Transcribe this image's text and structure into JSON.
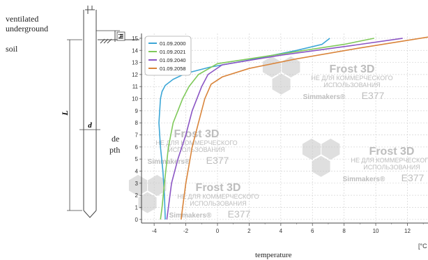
{
  "diagram": {
    "label_top_line1": "ventilated",
    "label_top_line2": "underground",
    "label_soil": "soil",
    "label_depth_line1": "de",
    "label_depth_line2": "pth",
    "label_length": "L",
    "label_diameter": "d",
    "label_height": "hi"
  },
  "watermark": {
    "brand": "Frost 3D",
    "line1": "НЕ ДЛЯ КОММЕРЧЕСКОГО",
    "line2": "ИСПОЛЬЗОВАНИЯ",
    "code": "E377",
    "company": "Simmakers®"
  },
  "colors": {
    "s2000": "#3ba6d6",
    "s2021": "#7fc95a",
    "s2040": "#8b55c4",
    "s2058": "#d9843a"
  },
  "chart_data": {
    "type": "line",
    "xlabel": "temperature",
    "x_unit_label": "[°C",
    "ylabel": "",
    "xlim": [
      -4.8,
      13.3
    ],
    "ylim": [
      -0.3,
      15.4
    ],
    "x_ticks": [
      "-4",
      "-2",
      "0",
      "2",
      "4",
      "6",
      "8",
      "10",
      "12"
    ],
    "y_ticks": [
      "0",
      "1",
      "2",
      "3",
      "4",
      "5",
      "6",
      "7",
      "8",
      "9",
      "10",
      "11",
      "12",
      "13",
      "14",
      "15"
    ],
    "legend_placement": "top-left",
    "series": [
      {
        "name": "01.09.2000",
        "color": "#3ba6d6",
        "points": [
          [
            -3.3,
            0
          ],
          [
            -3.35,
            2
          ],
          [
            -3.45,
            4
          ],
          [
            -3.6,
            6
          ],
          [
            -3.7,
            8
          ],
          [
            -3.65,
            9
          ],
          [
            -3.6,
            10
          ],
          [
            -3.5,
            10.6
          ],
          [
            -3.3,
            11.1
          ],
          [
            -2.8,
            11.6
          ],
          [
            -2,
            12.1
          ],
          [
            -0.5,
            12.6
          ],
          [
            2,
            13.2
          ],
          [
            5,
            14
          ],
          [
            6.6,
            14.5
          ],
          [
            7.1,
            15
          ]
        ]
      },
      {
        "name": "01.09.2021",
        "color": "#7fc95a",
        "points": [
          [
            -3.6,
            0
          ],
          [
            -3.5,
            1
          ],
          [
            -3.35,
            3
          ],
          [
            -3.1,
            6
          ],
          [
            -2.8,
            8
          ],
          [
            -2.5,
            9
          ],
          [
            -2.2,
            10
          ],
          [
            -1.8,
            11
          ],
          [
            -1.2,
            12
          ],
          [
            0,
            12.9
          ],
          [
            4,
            13.7
          ],
          [
            8,
            14.5
          ],
          [
            9.9,
            15
          ]
        ]
      },
      {
        "name": "01.09.2040",
        "color": "#8b55c4",
        "points": [
          [
            -3.2,
            0
          ],
          [
            -3.1,
            1
          ],
          [
            -2.9,
            3
          ],
          [
            -2.5,
            5
          ],
          [
            -2,
            7
          ],
          [
            -1.6,
            9
          ],
          [
            -1.3,
            10
          ],
          [
            -1,
            11
          ],
          [
            -0.6,
            12
          ],
          [
            0.3,
            12.8
          ],
          [
            4,
            13.6
          ],
          [
            8.5,
            14.4
          ],
          [
            11.7,
            15
          ]
        ]
      },
      {
        "name": "01.09.2058",
        "color": "#d9843a",
        "points": [
          [
            -2.3,
            0
          ],
          [
            -2.2,
            1
          ],
          [
            -2,
            3
          ],
          [
            -1.6,
            6
          ],
          [
            -1.2,
            8
          ],
          [
            -0.8,
            10
          ],
          [
            -0.4,
            11.2
          ],
          [
            0.3,
            11.8
          ],
          [
            2,
            12.5
          ],
          [
            5,
            13.3
          ],
          [
            9,
            14.2
          ],
          [
            13.3,
            15.1
          ]
        ]
      }
    ]
  }
}
